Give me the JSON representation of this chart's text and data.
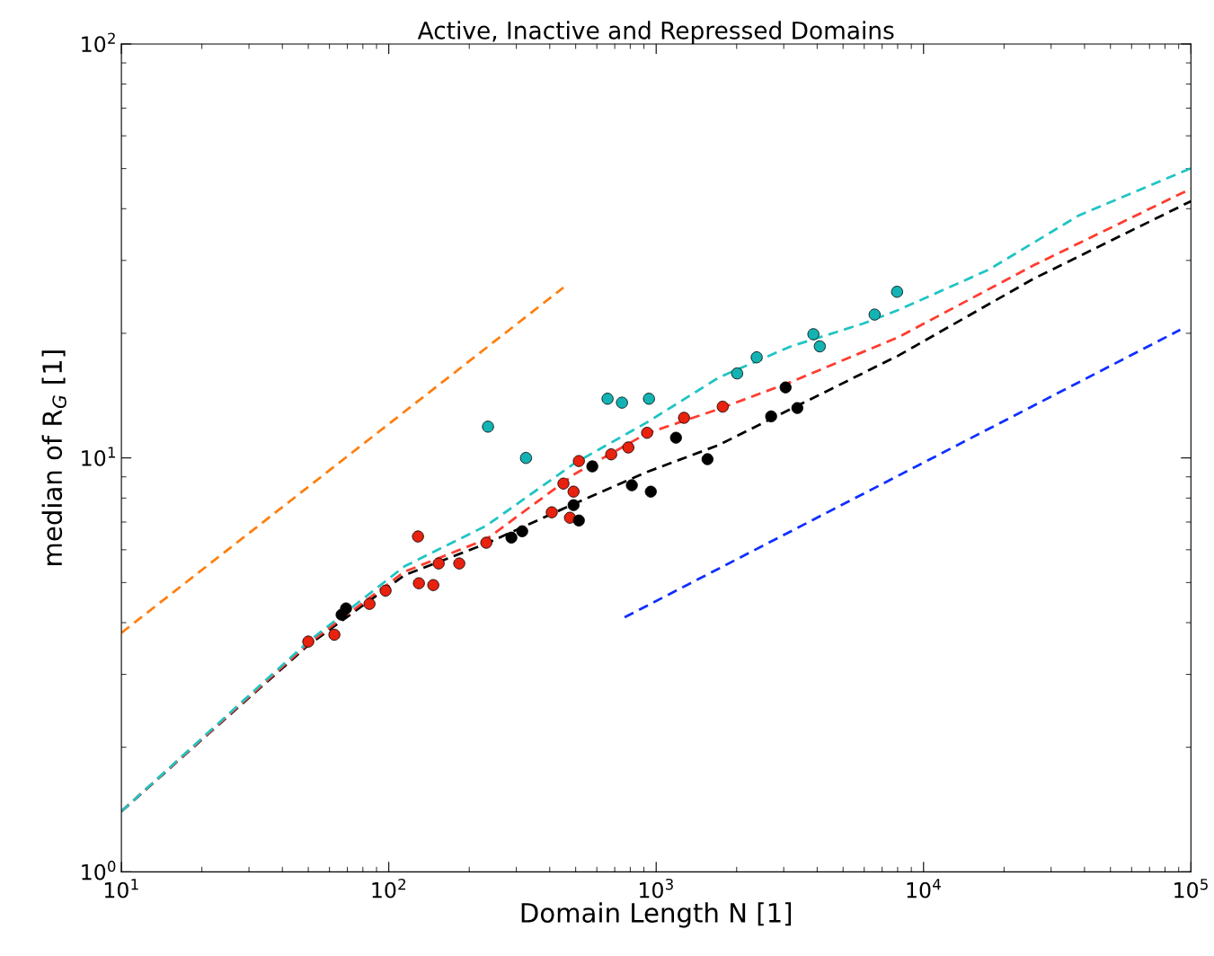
{
  "chart_data": {
    "type": "scatter",
    "title": "Active, Inactive and Repressed Domains",
    "xlabel": "Domain Length N [1]",
    "ylabel": "median of R$_{G}$ [1]",
    "log": "xy",
    "xlim": [
      10,
      100000
    ],
    "ylim": [
      1,
      100
    ],
    "xticks": [
      {
        "value": 10,
        "label": "10$^{1}$"
      },
      {
        "value": 100,
        "label": "10$^{2}$"
      },
      {
        "value": 1000,
        "label": "10$^{3}$"
      },
      {
        "value": 10000,
        "label": "10$^{4}$"
      },
      {
        "value": 100000,
        "label": "10$^{5}$"
      }
    ],
    "yticks": [
      {
        "value": 1,
        "label": "10$^{0}$"
      },
      {
        "value": 10,
        "label": "10$^{1}$"
      },
      {
        "value": 100,
        "label": "10$^{2}$"
      }
    ],
    "grid": false,
    "series": [
      {
        "type": "line",
        "marker": "none",
        "line_style": "dashed",
        "color": "#000000",
        "x": [
          10,
          24.4,
          50,
          114.5,
          231.6,
          498,
          925,
          1718,
          3192,
          8091,
          25800,
          100000
        ],
        "values": [
          1.4,
          2.34,
          3.53,
          5.21,
          6.21,
          7.77,
          9.25,
          10.75,
          13.13,
          17.7,
          27.1,
          41.7
        ]
      },
      {
        "type": "line",
        "marker": "none",
        "line_style": "dashed",
        "color": "#ff3b2f",
        "x": [
          10,
          50,
          114.5,
          231.6,
          498,
          925,
          1718,
          3192,
          8091,
          25800,
          100000
        ],
        "values": [
          1.4,
          3.56,
          5.31,
          6.36,
          9.16,
          11.47,
          13.13,
          15.26,
          19.6,
          29.2,
          44.7
        ]
      },
      {
        "type": "line",
        "marker": "none",
        "line_style": "dashed",
        "color": "#20c4c4",
        "x": [
          10,
          50,
          114.5,
          231.6,
          498,
          925,
          1718,
          3192,
          5929,
          8091,
          17540,
          38000,
          100000
        ],
        "values": [
          1.4,
          3.6,
          5.47,
          6.86,
          9.73,
          12.19,
          15.65,
          18.6,
          21.1,
          22.8,
          28.5,
          38.5,
          50.1
        ]
      },
      {
        "type": "line",
        "marker": "none",
        "line_style": "dashed",
        "color": "#ff7f0e",
        "x": [
          10,
          450
        ],
        "values": [
          3.78,
          25.8
        ]
      },
      {
        "type": "line",
        "marker": "none",
        "line_style": "dashed",
        "color": "#0f2fff",
        "x": [
          762,
          91200
        ],
        "values": [
          4.12,
          20.4
        ]
      },
      {
        "marker": "circle",
        "color": "#e8220f",
        "x": [
          50,
          62.6,
          84.7,
          97.3,
          128.6,
          129.6,
          146.7,
          153.7,
          183.5,
          231.6,
          407,
          450,
          476,
          491,
          514,
          679,
          787,
          925,
          1271,
          1774
        ],
        "values": [
          3.6,
          3.74,
          4.44,
          4.78,
          6.46,
          4.98,
          4.93,
          5.56,
          5.56,
          6.24,
          7.39,
          8.67,
          7.17,
          8.29,
          9.83,
          10.2,
          10.6,
          11.5,
          12.5,
          13.3
        ]
      },
      {
        "marker": "circle",
        "color": "#000000",
        "x": [
          66.6,
          69.2,
          287.5,
          315.5,
          491,
          514,
          577,
          811,
          955,
          1186,
          1556,
          2692,
          3048,
          3373
        ],
        "values": [
          4.18,
          4.33,
          6.42,
          6.65,
          7.69,
          7.06,
          9.54,
          8.59,
          8.29,
          11.19,
          9.93,
          12.6,
          14.8,
          13.2
        ]
      },
      {
        "marker": "circle",
        "color": "#14b3b3",
        "x": [
          235,
          326,
          658,
          745,
          940,
          2009,
          2377,
          3873,
          4093,
          6561,
          7962
        ],
        "values": [
          11.9,
          10.0,
          13.9,
          13.6,
          13.9,
          16.0,
          17.5,
          19.9,
          18.6,
          22.2,
          25.2
        ]
      }
    ]
  }
}
